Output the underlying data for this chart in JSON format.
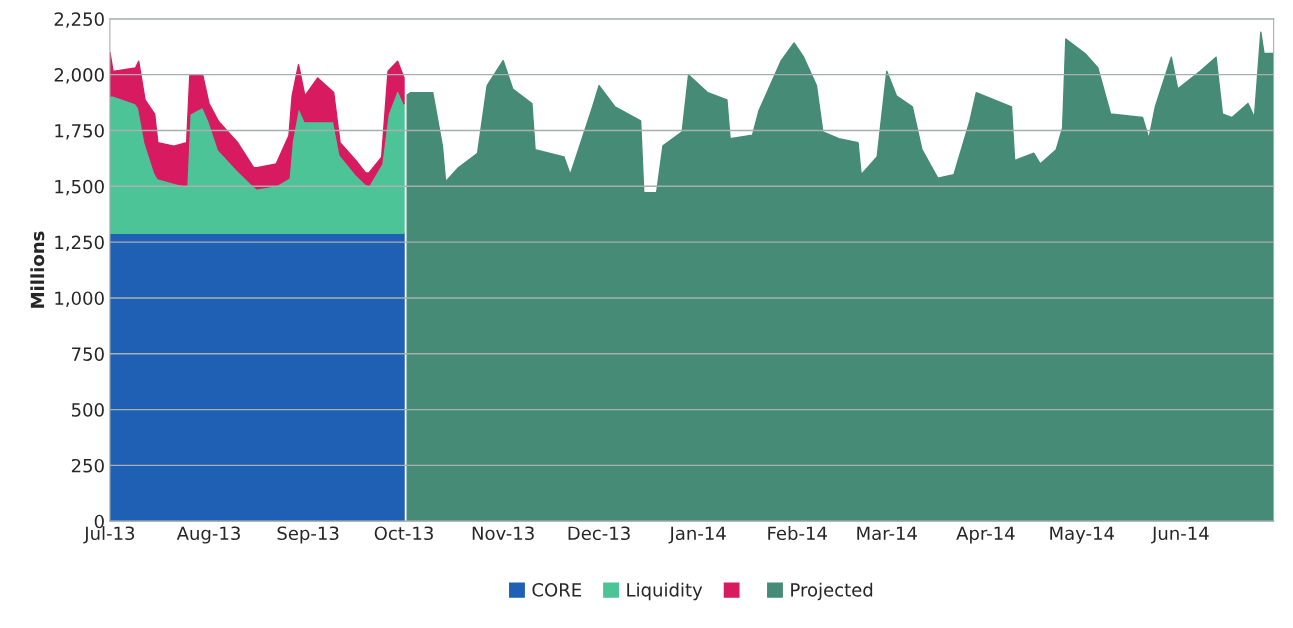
{
  "chart_data": {
    "type": "area",
    "stacked": true,
    "ylabel": "Millions",
    "legend": "bottom",
    "grid": "y",
    "xlim": [
      "2013-07-01",
      "2014-06-30"
    ],
    "xticks": [
      {
        "value": "2013-07-01",
        "label": "Jul-13"
      },
      {
        "value": "2013-08-01",
        "label": "Aug-13"
      },
      {
        "value": "2013-09-01",
        "label": "Sep-13"
      },
      {
        "value": "2013-10-01",
        "label": "Oct-13"
      },
      {
        "value": "2013-11-01",
        "label": "Nov-13"
      },
      {
        "value": "2013-12-01",
        "label": "Dec-13"
      },
      {
        "value": "2014-01-01",
        "label": "Jan-14"
      },
      {
        "value": "2014-02-01",
        "label": "Feb-14"
      },
      {
        "value": "2014-03-01",
        "label": "Mar-14"
      },
      {
        "value": "2014-04-01",
        "label": "Apr-14"
      },
      {
        "value": "2014-05-01",
        "label": "May-14"
      },
      {
        "value": "2014-06-01",
        "label": "Jun-14"
      }
    ],
    "ylim": [
      0,
      2250
    ],
    "yticks": [
      0,
      250,
      500,
      750,
      {
        "value": 1000,
        "label": "1,000"
      },
      {
        "value": 1250,
        "label": "1,250"
      },
      {
        "value": 1500,
        "label": "1,500"
      },
      {
        "value": 1750,
        "label": "1,750"
      },
      {
        "value": 2000,
        "label": "2,000"
      },
      {
        "value": 2250,
        "label": "2,250"
      }
    ],
    "x": [
      "2013-07-01",
      "2013-07-02",
      "2013-07-09",
      "2013-07-10",
      "2013-07-12",
      "2013-07-15",
      "2013-07-16",
      "2013-07-21",
      "2013-07-25",
      "2013-07-26",
      "2013-07-30",
      "2013-08-01",
      "2013-08-04",
      "2013-08-10",
      "2013-08-15",
      "2013-08-16",
      "2013-08-22",
      "2013-08-26",
      "2013-08-27",
      "2013-08-29",
      "2013-08-31",
      "2013-09-04",
      "2013-09-09",
      "2013-09-11",
      "2013-09-16",
      "2013-09-19",
      "2013-09-20",
      "2013-09-24",
      "2013-09-26",
      "2013-09-29",
      "2013-10-01",
      "2013-10-02",
      "2013-10-03",
      "2013-10-10",
      "2013-10-13",
      "2013-10-14",
      "2013-10-18",
      "2013-10-24",
      "2013-10-27",
      "2013-11-01",
      "2013-11-04",
      "2013-11-10",
      "2013-11-11",
      "2013-11-20",
      "2013-11-22",
      "2013-11-29",
      "2013-12-01",
      "2013-12-06",
      "2013-12-14",
      "2013-12-15",
      "2013-12-19",
      "2013-12-21",
      "2013-12-27",
      "2013-12-29",
      "2014-01-04",
      "2014-01-10",
      "2014-01-11",
      "2014-01-18",
      "2014-01-20",
      "2014-01-27",
      "2014-01-31",
      "2014-02-03",
      "2014-02-07",
      "2014-02-09",
      "2014-02-14",
      "2014-02-20",
      "2014-02-21",
      "2014-02-26",
      "2014-03-01",
      "2014-03-04",
      "2014-03-09",
      "2014-03-12",
      "2014-03-17",
      "2014-03-22",
      "2014-03-27",
      "2014-03-29",
      "2014-04-09",
      "2014-04-10",
      "2014-04-16",
      "2014-04-18",
      "2014-04-23",
      "2014-04-25",
      "2014-04-26",
      "2014-05-02",
      "2014-05-06",
      "2014-05-10",
      "2014-05-20",
      "2014-05-22",
      "2014-05-24",
      "2014-05-29",
      "2014-05-31",
      "2014-06-07",
      "2014-06-12",
      "2014-06-14",
      "2014-06-17",
      "2014-06-22",
      "2014-06-24",
      "2014-06-26",
      "2014-06-27",
      "2014-06-30"
    ],
    "series": [
      {
        "name": "CORE",
        "color": "#1f5fb4",
        "values": [
          1290,
          1290,
          1290,
          1290,
          1290,
          1290,
          1290,
          1290,
          1290,
          1290,
          1290,
          1290,
          1290,
          1290,
          1290,
          1290,
          1290,
          1290,
          1290,
          1290,
          1290,
          1290,
          1290,
          1290,
          1290,
          1290,
          1290,
          1290,
          1290,
          1290,
          1290,
          null,
          null,
          null,
          null,
          null,
          null,
          null,
          null,
          null,
          null,
          null,
          null,
          null,
          null,
          null,
          null,
          null,
          null,
          null,
          null,
          null,
          null,
          null,
          null,
          null,
          null,
          null,
          null,
          null,
          null,
          null,
          null,
          null,
          null,
          null,
          null,
          null,
          null,
          null,
          null,
          null,
          null,
          null,
          null,
          null,
          null,
          null,
          null,
          null,
          null,
          null,
          null,
          null,
          null,
          null,
          null,
          null,
          null,
          null,
          null,
          null,
          null,
          null,
          null,
          null,
          null,
          null,
          null,
          null
        ]
      },
      {
        "name": "Liquidity",
        "color": "#4cc497",
        "values": [
          615,
          615,
          580,
          560,
          405,
          270,
          245,
          225,
          210,
          533,
          565,
          500,
          373,
          280,
          210,
          199,
          213,
          247,
          410,
          565,
          500,
          500,
          500,
          350,
          262,
          220,
          213,
          310,
          533,
          645,
          580,
          null,
          null,
          null,
          null,
          null,
          null,
          null,
          null,
          null,
          null,
          null,
          null,
          null,
          null,
          null,
          null,
          null,
          null,
          null,
          null,
          null,
          null,
          null,
          null,
          null,
          null,
          null,
          null,
          null,
          null,
          null,
          null,
          null,
          null,
          null,
          null,
          null,
          null,
          null,
          null,
          null,
          null,
          null,
          null,
          null,
          null,
          null,
          null,
          null,
          null,
          null,
          null,
          null,
          null,
          null,
          null,
          null,
          null,
          null,
          null,
          null,
          null,
          null,
          null,
          null,
          null,
          null,
          null,
          null
        ]
      },
      {
        "color": "#d81b60",
        "values": [
          195,
          110,
          160,
          210,
          192,
          263,
          160,
          165,
          195,
          177,
          145,
          80,
          127,
          125,
          83,
          94,
          97,
          190,
          205,
          190,
          115,
          195,
          130,
          55,
          63,
          50,
          57,
          30,
          192,
          125,
          115,
          null,
          null,
          null,
          null,
          null,
          null,
          null,
          null,
          null,
          null,
          null,
          null,
          null,
          null,
          null,
          null,
          null,
          null,
          null,
          null,
          null,
          null,
          null,
          null,
          null,
          null,
          null,
          null,
          null,
          null,
          null,
          null,
          null,
          null,
          null,
          null,
          null,
          null,
          null,
          null,
          null,
          null,
          null,
          null,
          null,
          null,
          null,
          null,
          null,
          null,
          null,
          null,
          null,
          null,
          null,
          null,
          null,
          null,
          null,
          null,
          null,
          null,
          null,
          null,
          null,
          null,
          null,
          null,
          null
        ]
      },
      {
        "name": "Projected",
        "color": "#468b75",
        "values": [
          null,
          null,
          null,
          null,
          null,
          null,
          null,
          null,
          null,
          null,
          null,
          null,
          null,
          null,
          null,
          null,
          null,
          null,
          null,
          null,
          null,
          null,
          null,
          null,
          null,
          null,
          null,
          null,
          null,
          null,
          null,
          1910,
          1919,
          1919,
          1681,
          1520,
          1583,
          1648,
          1951,
          2063,
          1936,
          1871,
          1664,
          1632,
          1552,
          1856,
          1951,
          1856,
          1793,
          1471,
          1471,
          1681,
          1744,
          1999,
          1919,
          1887,
          1713,
          1729,
          1838,
          2063,
          2142,
          2078,
          1951,
          1744,
          1713,
          1695,
          1552,
          1632,
          2015,
          1905,
          1856,
          1664,
          1536,
          1552,
          1793,
          1919,
          1856,
          1615,
          1648,
          1600,
          1664,
          1761,
          2160,
          2095,
          2031,
          1824,
          1808,
          1713,
          1856,
          2078,
          1936,
          2015,
          2078,
          1824,
          1808,
          1871,
          1808,
          2190,
          2095,
          2095
        ]
      }
    ]
  }
}
